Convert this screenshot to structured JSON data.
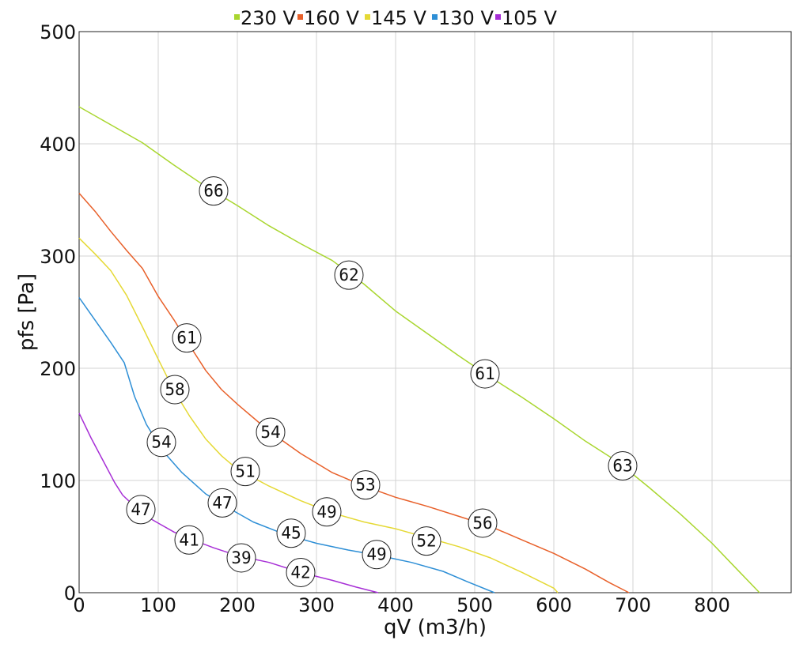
{
  "chart_data": {
    "type": "line",
    "xlabel": "qV (m3/h)",
    "ylabel": "pfs [Pa]",
    "xlim": [
      0,
      900
    ],
    "ylim": [
      0,
      500
    ],
    "x_ticks": [
      0,
      100,
      200,
      300,
      400,
      500,
      600,
      700,
      800
    ],
    "y_ticks": [
      0,
      100,
      200,
      300,
      400,
      500
    ],
    "grid": true,
    "legend_position": "top",
    "series": [
      {
        "name": "230 V",
        "color": "#a9d62f",
        "points": [
          [
            0,
            433
          ],
          [
            40,
            417
          ],
          [
            80,
            401
          ],
          [
            120,
            381
          ],
          [
            160,
            362
          ],
          [
            200,
            345
          ],
          [
            240,
            327
          ],
          [
            280,
            311
          ],
          [
            320,
            296
          ],
          [
            360,
            275
          ],
          [
            400,
            251
          ],
          [
            440,
            231
          ],
          [
            480,
            211
          ],
          [
            520,
            192
          ],
          [
            560,
            174
          ],
          [
            600,
            155
          ],
          [
            640,
            135
          ],
          [
            680,
            117
          ],
          [
            720,
            94
          ],
          [
            760,
            70
          ],
          [
            800,
            44
          ],
          [
            830,
            22
          ],
          [
            860,
            0
          ]
        ],
        "labels": [
          {
            "x": 170,
            "y": 358,
            "text": "66"
          },
          {
            "x": 341,
            "y": 283,
            "text": "62"
          },
          {
            "x": 513,
            "y": 195,
            "text": "61"
          },
          {
            "x": 687,
            "y": 113,
            "text": "63"
          }
        ]
      },
      {
        "name": "160 V",
        "color": "#e8602a",
        "points": [
          [
            0,
            356
          ],
          [
            20,
            340
          ],
          [
            40,
            322
          ],
          [
            60,
            305
          ],
          [
            80,
            289
          ],
          [
            100,
            264
          ],
          [
            120,
            243
          ],
          [
            140,
            220
          ],
          [
            160,
            198
          ],
          [
            180,
            181
          ],
          [
            200,
            168
          ],
          [
            240,
            144
          ],
          [
            280,
            124
          ],
          [
            320,
            107
          ],
          [
            360,
            95
          ],
          [
            400,
            85
          ],
          [
            440,
            77
          ],
          [
            480,
            68
          ],
          [
            520,
            59
          ],
          [
            560,
            47
          ],
          [
            600,
            35
          ],
          [
            640,
            21
          ],
          [
            670,
            9
          ],
          [
            695,
            0
          ]
        ],
        "labels": [
          {
            "x": 136,
            "y": 227,
            "text": "61"
          },
          {
            "x": 242,
            "y": 143,
            "text": "54"
          },
          {
            "x": 362,
            "y": 96,
            "text": "53"
          },
          {
            "x": 510,
            "y": 62,
            "text": "56"
          }
        ]
      },
      {
        "name": "145 V",
        "color": "#e5d935",
        "points": [
          [
            0,
            316
          ],
          [
            20,
            302
          ],
          [
            40,
            287
          ],
          [
            60,
            265
          ],
          [
            80,
            237
          ],
          [
            100,
            208
          ],
          [
            120,
            180
          ],
          [
            140,
            157
          ],
          [
            160,
            137
          ],
          [
            180,
            122
          ],
          [
            200,
            110
          ],
          [
            240,
            95
          ],
          [
            280,
            82
          ],
          [
            320,
            71
          ],
          [
            360,
            63
          ],
          [
            400,
            57
          ],
          [
            440,
            49
          ],
          [
            480,
            41
          ],
          [
            520,
            31
          ],
          [
            560,
            18
          ],
          [
            600,
            4
          ],
          [
            605,
            0
          ]
        ],
        "labels": [
          {
            "x": 121,
            "y": 181,
            "text": "58"
          },
          {
            "x": 210,
            "y": 108,
            "text": "51"
          },
          {
            "x": 313,
            "y": 72,
            "text": "49"
          },
          {
            "x": 439,
            "y": 46,
            "text": "52"
          }
        ]
      },
      {
        "name": "130 V",
        "color": "#2e8fd6",
        "points": [
          [
            0,
            263
          ],
          [
            20,
            243
          ],
          [
            40,
            223
          ],
          [
            57,
            205
          ],
          [
            70,
            175
          ],
          [
            85,
            150
          ],
          [
            105,
            127
          ],
          [
            130,
            107
          ],
          [
            160,
            88
          ],
          [
            190,
            75
          ],
          [
            220,
            63
          ],
          [
            260,
            52
          ],
          [
            300,
            44
          ],
          [
            340,
            38
          ],
          [
            380,
            33
          ],
          [
            420,
            27
          ],
          [
            460,
            19
          ],
          [
            490,
            10
          ],
          [
            525,
            0
          ]
        ],
        "labels": [
          {
            "x": 104,
            "y": 134,
            "text": "54"
          },
          {
            "x": 181,
            "y": 80,
            "text": "47"
          },
          {
            "x": 268,
            "y": 53,
            "text": "45"
          },
          {
            "x": 376,
            "y": 34,
            "text": "49"
          }
        ]
      },
      {
        "name": "105 V",
        "color": "#a72fd6",
        "points": [
          [
            0,
            160
          ],
          [
            15,
            138
          ],
          [
            30,
            118
          ],
          [
            45,
            98
          ],
          [
            55,
            87
          ],
          [
            70,
            77
          ],
          [
            85,
            68
          ],
          [
            100,
            62
          ],
          [
            120,
            54
          ],
          [
            140,
            48
          ],
          [
            170,
            40
          ],
          [
            200,
            33
          ],
          [
            240,
            27
          ],
          [
            280,
            18
          ],
          [
            320,
            11
          ],
          [
            350,
            5
          ],
          [
            378,
            0
          ]
        ],
        "labels": [
          {
            "x": 78,
            "y": 74,
            "text": "47"
          },
          {
            "x": 139,
            "y": 47,
            "text": "41"
          },
          {
            "x": 205,
            "y": 31,
            "text": "39"
          },
          {
            "x": 280,
            "y": 18,
            "text": "42"
          }
        ]
      }
    ]
  }
}
